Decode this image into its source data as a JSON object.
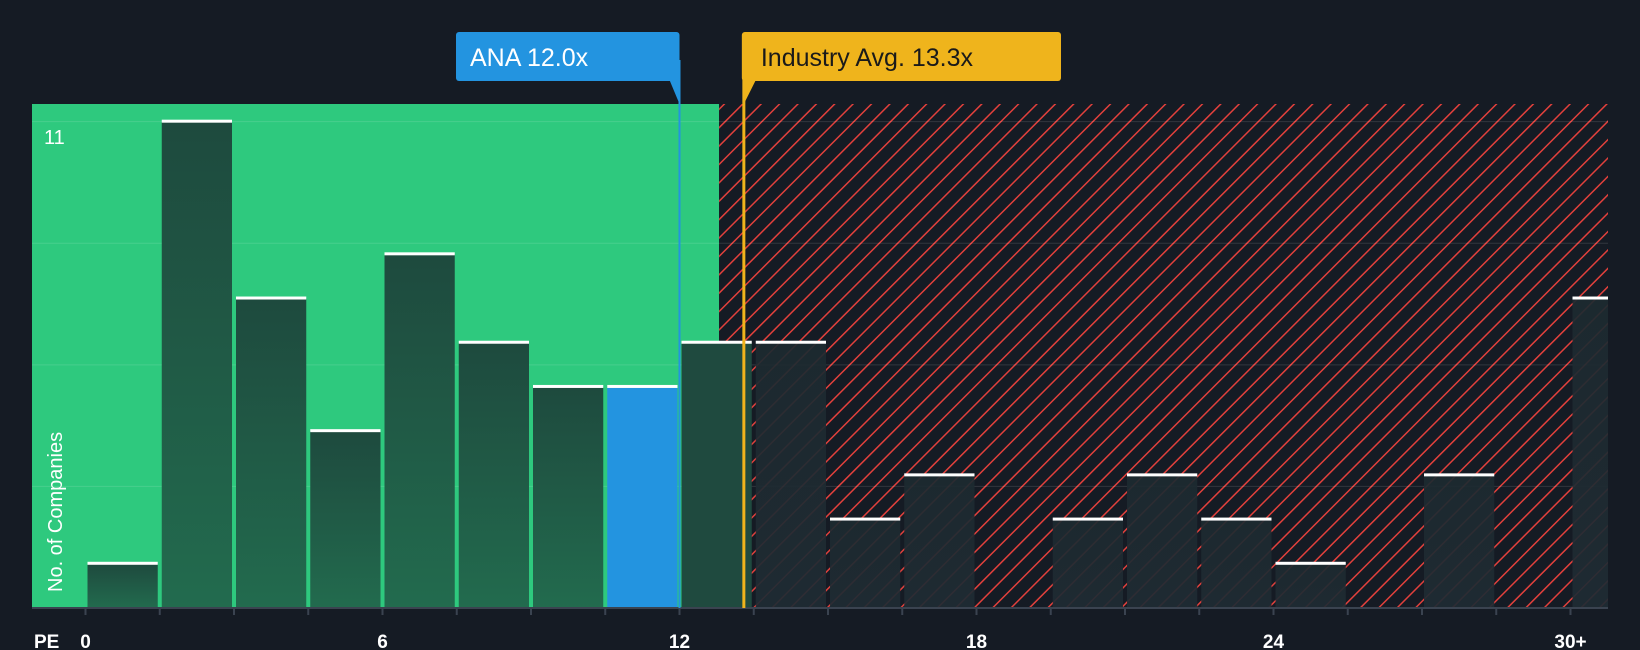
{
  "chart_data": {
    "type": "bar",
    "title": "",
    "xlabel": "PE",
    "ylabel": "No. of Companies",
    "xlim": [
      0,
      31
    ],
    "ylim": [
      0,
      11.4
    ],
    "bin_width": 1.5,
    "x_ticks": [
      {
        "value": 0,
        "label": "0"
      },
      {
        "value": 6,
        "label": "6"
      },
      {
        "value": 12,
        "label": "12"
      },
      {
        "value": 18,
        "label": "18"
      },
      {
        "value": 24,
        "label": "24"
      },
      {
        "value": 30,
        "label": "30+"
      }
    ],
    "y_tick_label": {
      "value": 11,
      "label": "11"
    },
    "gridlines_y": [
      2.75,
      5.5,
      8.25,
      11
    ],
    "bins": [
      {
        "start": 0,
        "value": 1
      },
      {
        "start": 1.5,
        "value": 11
      },
      {
        "start": 3,
        "value": 7
      },
      {
        "start": 4.5,
        "value": 4
      },
      {
        "start": 6,
        "value": 8
      },
      {
        "start": 7.5,
        "value": 6
      },
      {
        "start": 9,
        "value": 5
      },
      {
        "start": 10.5,
        "value": 5,
        "highlight": true
      },
      {
        "start": 12,
        "value": 6
      },
      {
        "start": 13.5,
        "value": 6
      },
      {
        "start": 15,
        "value": 2
      },
      {
        "start": 16.5,
        "value": 3
      },
      {
        "start": 18,
        "value": 0
      },
      {
        "start": 19.5,
        "value": 2
      },
      {
        "start": 21,
        "value": 3
      },
      {
        "start": 22.5,
        "value": 2
      },
      {
        "start": 24,
        "value": 1
      },
      {
        "start": 25.5,
        "value": 0
      },
      {
        "start": 27,
        "value": 3
      },
      {
        "start": 28.5,
        "value": 0
      },
      {
        "start": 30,
        "value": 7
      }
    ],
    "fair_zone_end": 12.8,
    "company": {
      "name": "ANA",
      "pe": 12.0,
      "label": "ANA 12.0x"
    },
    "industry": {
      "pe": 13.3,
      "label": "Industry Avg. 13.3x"
    },
    "colors": {
      "background": "#151b24",
      "fair_zone": "#2ec97e",
      "bar": "#1e4a3e",
      "highlight_bar": "#2394e0",
      "over_zone": "#e2403c",
      "industry": "#efb41c",
      "company": "#2394e0",
      "bar_cap": "#ffffff"
    }
  }
}
